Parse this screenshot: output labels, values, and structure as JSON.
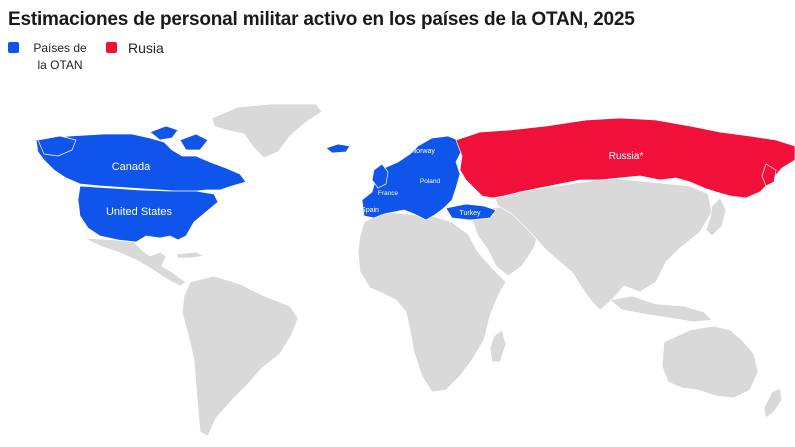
{
  "title": "Estimaciones de personal militar activo en los países de la OTAN, 2025",
  "legend": {
    "items": [
      {
        "label": "Países de la OTAN",
        "color": "#0f55eb"
      },
      {
        "label": "Rusia",
        "color": "#f0103a"
      }
    ]
  },
  "map": {
    "land_color": "#d9d9d9",
    "border_color": "#ffffff",
    "labels": {
      "canada": "Canada",
      "united_states": "United States",
      "russia": "Russia*",
      "norway": "Norway",
      "poland": "Poland",
      "france": "France",
      "spain": "Spain",
      "turkey": "Turkey"
    }
  }
}
